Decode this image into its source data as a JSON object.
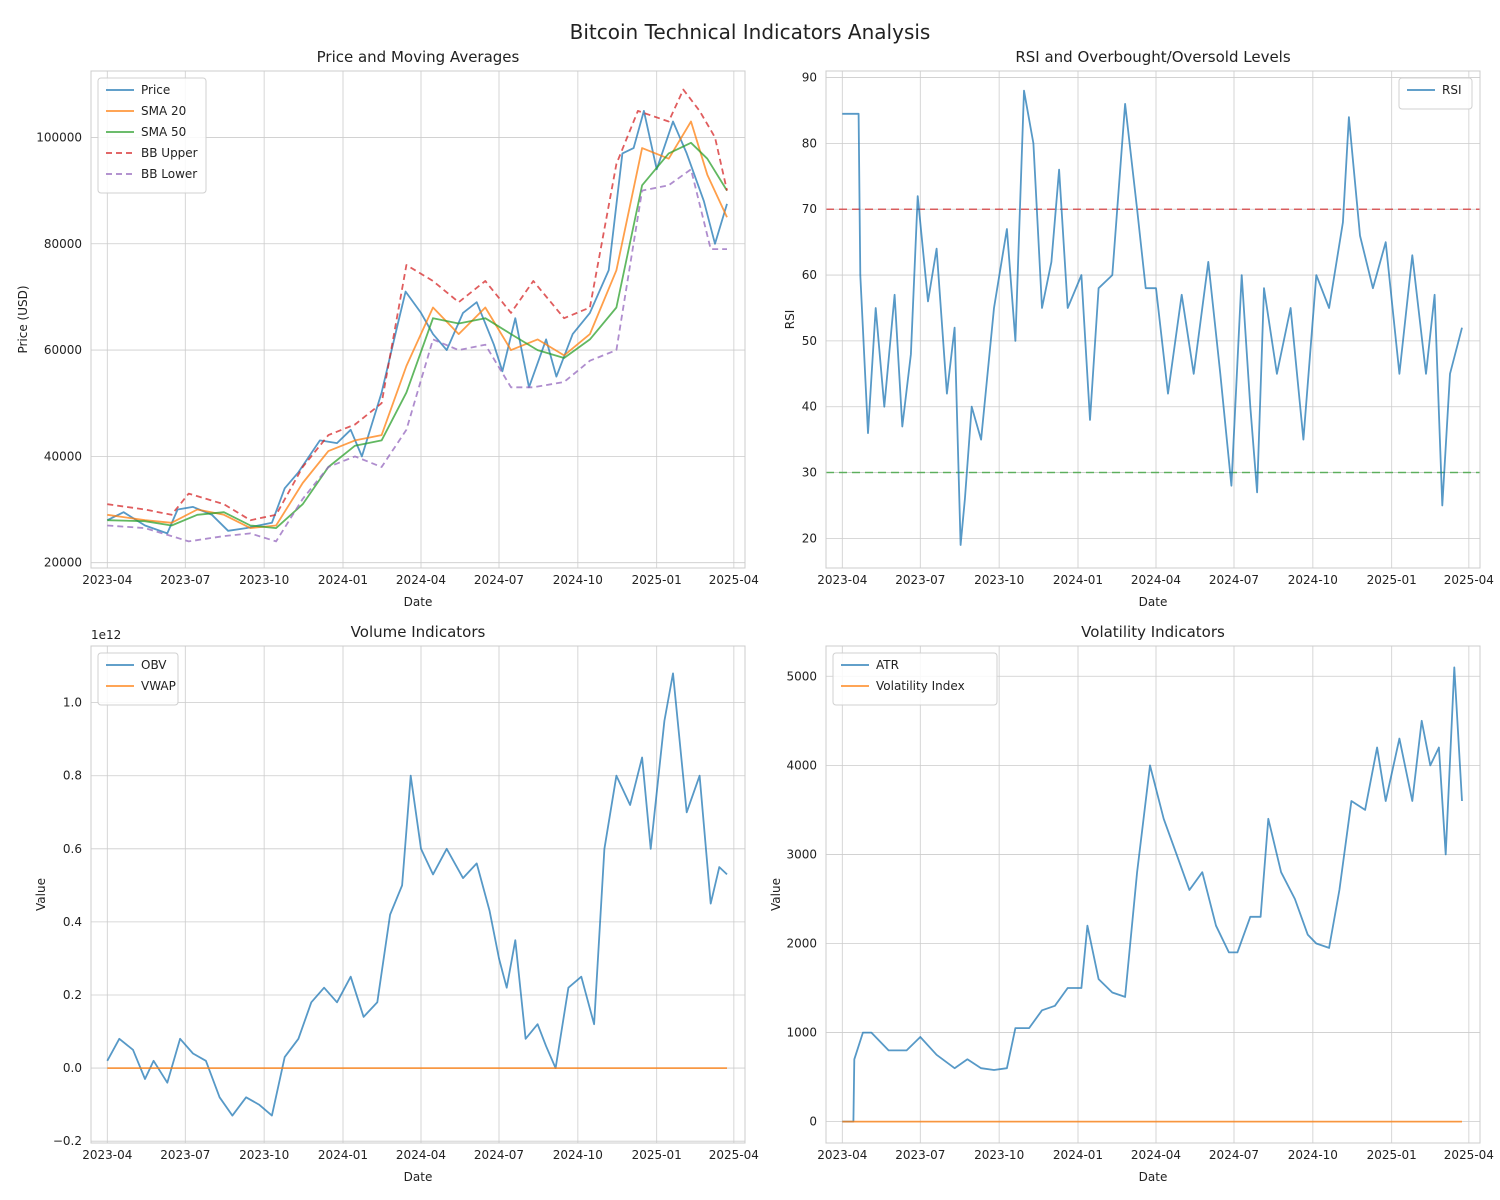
{
  "title": "Bitcoin Technical Indicators Analysis",
  "colors": {
    "blue": "#1f77b4",
    "orange": "#ff7f0e",
    "green": "#2ca02c",
    "red": "#d62728",
    "purple": "#9467bd",
    "grid": "#cccccc",
    "frame": "#cccccc"
  },
  "chart_data": [
    {
      "type": "line",
      "title": "Price and Moving Averages",
      "xlabel": "Date",
      "ylabel": "Price (USD)",
      "xlim": [
        "2023-03-13",
        "2025-04-14"
      ],
      "ylim": [
        19000,
        112500
      ],
      "xticks": [
        "2023-04",
        "2023-07",
        "2023-10",
        "2024-01",
        "2024-04",
        "2024-07",
        "2024-10",
        "2025-01",
        "2025-04"
      ],
      "yticks": [
        20000,
        40000,
        60000,
        80000,
        100000
      ],
      "legend": "top-left",
      "series": [
        {
          "name": "Price",
          "color": "#1f77b4",
          "dash": "",
          "x": [
            "2023-04-01",
            "2023-04-20",
            "2023-05-15",
            "2023-06-10",
            "2023-06-22",
            "2023-07-10",
            "2023-08-01",
            "2023-08-20",
            "2023-09-10",
            "2023-10-10",
            "2023-10-25",
            "2023-11-10",
            "2023-12-05",
            "2023-12-25",
            "2024-01-10",
            "2024-01-23",
            "2024-02-15",
            "2024-03-05",
            "2024-03-14",
            "2024-04-01",
            "2024-04-15",
            "2024-05-01",
            "2024-05-20",
            "2024-06-05",
            "2024-06-25",
            "2024-07-05",
            "2024-07-20",
            "2024-08-05",
            "2024-08-25",
            "2024-09-06",
            "2024-09-25",
            "2024-10-15",
            "2024-11-06",
            "2024-11-22",
            "2024-12-05",
            "2024-12-17",
            "2025-01-01",
            "2025-01-20",
            "2025-02-05",
            "2025-02-25",
            "2025-03-10",
            "2025-03-24"
          ],
          "y": [
            28000,
            29500,
            27000,
            25500,
            30000,
            30500,
            29000,
            26000,
            26500,
            27500,
            34000,
            37000,
            43000,
            42500,
            45000,
            40000,
            52000,
            65000,
            71000,
            67000,
            63000,
            60000,
            67000,
            69000,
            61000,
            56000,
            66000,
            53000,
            62000,
            55000,
            63000,
            67000,
            75000,
            97000,
            98000,
            105000,
            94000,
            103000,
            97000,
            88000,
            80000,
            87500
          ]
        },
        {
          "name": "SMA 20",
          "color": "#ff7f0e",
          "dash": "",
          "x": [
            "2023-04-01",
            "2023-05-15",
            "2023-06-15",
            "2023-07-15",
            "2023-08-15",
            "2023-09-15",
            "2023-10-15",
            "2023-11-15",
            "2023-12-15",
            "2024-01-15",
            "2024-02-15",
            "2024-03-15",
            "2024-04-15",
            "2024-05-15",
            "2024-06-15",
            "2024-07-15",
            "2024-08-15",
            "2024-09-15",
            "2024-10-15",
            "2024-11-15",
            "2024-12-15",
            "2025-01-15",
            "2025-02-10",
            "2025-03-01",
            "2025-03-24"
          ],
          "y": [
            29000,
            28000,
            27500,
            30000,
            29000,
            26500,
            27000,
            35000,
            41000,
            43000,
            44000,
            57000,
            68000,
            63000,
            68000,
            60000,
            62000,
            59000,
            63000,
            75000,
            98000,
            96000,
            103000,
            93000,
            85000
          ]
        },
        {
          "name": "SMA 50",
          "color": "#2ca02c",
          "dash": "",
          "x": [
            "2023-04-01",
            "2023-05-15",
            "2023-06-15",
            "2023-07-15",
            "2023-08-15",
            "2023-09-15",
            "2023-10-15",
            "2023-11-15",
            "2023-12-15",
            "2024-01-15",
            "2024-02-15",
            "2024-03-15",
            "2024-04-15",
            "2024-05-15",
            "2024-06-15",
            "2024-07-15",
            "2024-08-15",
            "2024-09-15",
            "2024-10-15",
            "2024-11-15",
            "2024-12-15",
            "2025-01-15",
            "2025-02-10",
            "2025-03-01",
            "2025-03-24"
          ],
          "y": [
            28000,
            27800,
            27000,
            29000,
            29500,
            27000,
            26500,
            31000,
            38000,
            42000,
            43000,
            52000,
            66000,
            65000,
            66000,
            63000,
            60000,
            58500,
            62000,
            68000,
            91000,
            97000,
            99000,
            96000,
            90000
          ]
        },
        {
          "name": "BB Upper",
          "color": "#d62728",
          "dash": "6,4",
          "x": [
            "2023-04-01",
            "2023-05-15",
            "2023-06-15",
            "2023-07-05",
            "2023-08-15",
            "2023-09-15",
            "2023-10-15",
            "2023-11-15",
            "2023-12-15",
            "2024-01-15",
            "2024-02-15",
            "2024-03-15",
            "2024-04-15",
            "2024-05-15",
            "2024-06-15",
            "2024-07-15",
            "2024-08-10",
            "2024-09-15",
            "2024-10-15",
            "2024-11-15",
            "2024-12-10",
            "2025-01-15",
            "2025-02-01",
            "2025-02-20",
            "2025-03-10",
            "2025-03-24"
          ],
          "y": [
            31000,
            30000,
            29000,
            33000,
            31000,
            28000,
            29000,
            38000,
            44000,
            46000,
            50000,
            76000,
            73000,
            69000,
            73000,
            67000,
            73000,
            66000,
            68000,
            95000,
            105000,
            103000,
            109000,
            105000,
            100000,
            90000
          ]
        },
        {
          "name": "BB Lower",
          "color": "#9467bd",
          "dash": "6,4",
          "x": [
            "2023-04-01",
            "2023-05-15",
            "2023-06-15",
            "2023-07-05",
            "2023-08-15",
            "2023-09-15",
            "2023-10-15",
            "2023-11-15",
            "2023-12-15",
            "2024-01-15",
            "2024-02-15",
            "2024-03-15",
            "2024-04-15",
            "2024-05-15",
            "2024-06-15",
            "2024-07-15",
            "2024-08-10",
            "2024-09-15",
            "2024-10-15",
            "2024-11-15",
            "2024-12-15",
            "2025-01-15",
            "2025-02-10",
            "2025-03-05",
            "2025-03-24"
          ],
          "y": [
            27000,
            26500,
            25000,
            24000,
            25000,
            25500,
            24000,
            32000,
            38000,
            40000,
            38000,
            45000,
            62000,
            60000,
            61000,
            53000,
            53000,
            54000,
            58000,
            60000,
            90000,
            91000,
            94000,
            79000,
            79000
          ]
        }
      ]
    },
    {
      "type": "line",
      "title": "RSI and Overbought/Oversold Levels",
      "xlabel": "Date",
      "ylabel": "RSI",
      "xlim": [
        "2023-03-13",
        "2025-04-14"
      ],
      "ylim": [
        15.5,
        91
      ],
      "xticks": [
        "2023-04",
        "2023-07",
        "2023-10",
        "2024-01",
        "2024-04",
        "2024-07",
        "2024-10",
        "2025-01",
        "2025-04"
      ],
      "yticks": [
        20,
        30,
        40,
        50,
        60,
        70,
        80,
        90
      ],
      "legend": "top-right",
      "hlines": [
        {
          "y": 70,
          "color": "#d62728"
        },
        {
          "y": 30,
          "color": "#2ca02c"
        }
      ],
      "series": [
        {
          "name": "RSI",
          "color": "#1f77b4",
          "dash": "",
          "x": [
            "2023-04-01",
            "2023-04-20",
            "2023-04-22",
            "2023-05-01",
            "2023-05-10",
            "2023-05-20",
            "2023-06-01",
            "2023-06-10",
            "2023-06-20",
            "2023-06-28",
            "2023-07-10",
            "2023-07-20",
            "2023-08-01",
            "2023-08-10",
            "2023-08-17",
            "2023-08-22",
            "2023-08-30",
            "2023-09-10",
            "2023-09-25",
            "2023-10-10",
            "2023-10-20",
            "2023-10-30",
            "2023-11-10",
            "2023-11-20",
            "2023-12-01",
            "2023-12-10",
            "2023-12-20",
            "2024-01-05",
            "2024-01-15",
            "2024-01-25",
            "2024-02-10",
            "2024-02-25",
            "2024-03-10",
            "2024-03-20",
            "2024-04-01",
            "2024-04-15",
            "2024-05-01",
            "2024-05-15",
            "2024-06-01",
            "2024-06-15",
            "2024-06-28",
            "2024-07-10",
            "2024-07-20",
            "2024-07-28",
            "2024-08-05",
            "2024-08-20",
            "2024-09-05",
            "2024-09-20",
            "2024-10-05",
            "2024-10-20",
            "2024-11-05",
            "2024-11-12",
            "2024-11-25",
            "2024-12-10",
            "2024-12-25",
            "2025-01-10",
            "2025-01-25",
            "2025-02-10",
            "2025-02-20",
            "2025-03-01",
            "2025-03-10",
            "2025-03-24"
          ],
          "y": [
            84.5,
            84.5,
            60,
            36,
            55,
            40,
            57,
            37,
            48,
            72,
            56,
            64,
            42,
            52,
            19,
            26,
            40,
            35,
            55,
            67,
            50,
            88,
            80,
            55,
            62,
            76,
            55,
            60,
            38,
            58,
            60,
            86,
            70,
            58,
            58,
            42,
            57,
            45,
            62,
            45,
            28,
            60,
            40,
            27,
            58,
            45,
            55,
            35,
            60,
            55,
            68,
            84,
            66,
            58,
            65,
            45,
            63,
            45,
            57,
            25,
            45,
            52
          ]
        }
      ]
    },
    {
      "type": "line",
      "title": "Volume Indicators",
      "xlabel": "Date",
      "ylabel": "Value",
      "scale_label": "1e12",
      "xlim": [
        "2023-03-13",
        "2025-04-14"
      ],
      "ylim": [
        -0.205,
        1.155
      ],
      "xticks": [
        "2023-04",
        "2023-07",
        "2023-10",
        "2024-01",
        "2024-04",
        "2024-07",
        "2024-10",
        "2025-01",
        "2025-04"
      ],
      "yticks": [
        "−0.2",
        "0.0",
        "0.2",
        "0.4",
        "0.6",
        "0.8",
        "1.0"
      ],
      "ytick_values": [
        -0.2,
        0.0,
        0.2,
        0.4,
        0.6,
        0.8,
        1.0
      ],
      "legend": "top-left",
      "series": [
        {
          "name": "OBV",
          "color": "#1f77b4",
          "dash": "",
          "x": [
            "2023-04-01",
            "2023-04-15",
            "2023-05-01",
            "2023-05-15",
            "2023-05-25",
            "2023-06-10",
            "2023-06-25",
            "2023-07-10",
            "2023-07-25",
            "2023-08-10",
            "2023-08-25",
            "2023-09-10",
            "2023-09-25",
            "2023-10-10",
            "2023-10-25",
            "2023-11-10",
            "2023-11-25",
            "2023-12-10",
            "2023-12-25",
            "2024-01-10",
            "2024-01-25",
            "2024-02-10",
            "2024-02-25",
            "2024-03-10",
            "2024-03-20",
            "2024-04-01",
            "2024-04-15",
            "2024-05-01",
            "2024-05-20",
            "2024-06-05",
            "2024-06-20",
            "2024-07-01",
            "2024-07-10",
            "2024-07-20",
            "2024-08-01",
            "2024-08-15",
            "2024-08-25",
            "2024-09-05",
            "2024-09-20",
            "2024-10-05",
            "2024-10-20",
            "2024-11-01",
            "2024-11-15",
            "2024-12-01",
            "2024-12-15",
            "2024-12-25",
            "2025-01-10",
            "2025-01-20",
            "2025-02-05",
            "2025-02-20",
            "2025-03-05",
            "2025-03-15",
            "2025-03-24"
          ],
          "y": [
            0.02,
            0.08,
            0.05,
            -0.03,
            0.02,
            -0.04,
            0.08,
            0.04,
            0.02,
            -0.08,
            -0.13,
            -0.08,
            -0.1,
            -0.13,
            0.03,
            0.08,
            0.18,
            0.22,
            0.18,
            0.25,
            0.14,
            0.18,
            0.42,
            0.5,
            0.8,
            0.6,
            0.53,
            0.6,
            0.52,
            0.56,
            0.43,
            0.3,
            0.22,
            0.35,
            0.08,
            0.12,
            0.06,
            0.0,
            0.22,
            0.25,
            0.12,
            0.6,
            0.8,
            0.72,
            0.85,
            0.6,
            0.95,
            1.08,
            0.7,
            0.8,
            0.45,
            0.55,
            0.53
          ]
        },
        {
          "name": "VWAP",
          "color": "#ff7f0e",
          "dash": "",
          "x": [
            "2023-04-01",
            "2025-03-24"
          ],
          "y": [
            0.0,
            0.0
          ]
        }
      ]
    },
    {
      "type": "line",
      "title": "Volatility Indicators",
      "xlabel": "Date",
      "ylabel": "Value",
      "xlim": [
        "2023-03-13",
        "2025-04-14"
      ],
      "ylim": [
        -240,
        5340
      ],
      "xticks": [
        "2023-04",
        "2023-07",
        "2023-10",
        "2024-01",
        "2024-04",
        "2024-07",
        "2024-10",
        "2025-01",
        "2025-04"
      ],
      "yticks": [
        0,
        1000,
        2000,
        3000,
        4000,
        5000
      ],
      "legend": "top-left",
      "series": [
        {
          "name": "ATR",
          "color": "#1f77b4",
          "dash": "",
          "x": [
            "2023-04-01",
            "2023-04-14",
            "2023-04-15",
            "2023-04-25",
            "2023-05-05",
            "2023-05-25",
            "2023-06-15",
            "2023-07-01",
            "2023-07-20",
            "2023-08-10",
            "2023-08-25",
            "2023-09-10",
            "2023-09-25",
            "2023-10-10",
            "2023-10-20",
            "2023-11-05",
            "2023-11-20",
            "2023-12-05",
            "2023-12-20",
            "2024-01-05",
            "2024-01-12",
            "2024-01-25",
            "2024-02-10",
            "2024-02-25",
            "2024-03-10",
            "2024-03-25",
            "2024-04-10",
            "2024-04-25",
            "2024-05-10",
            "2024-05-25",
            "2024-06-10",
            "2024-06-25",
            "2024-07-05",
            "2024-07-20",
            "2024-08-01",
            "2024-08-10",
            "2024-08-25",
            "2024-09-10",
            "2024-09-25",
            "2024-10-05",
            "2024-10-20",
            "2024-11-01",
            "2024-11-15",
            "2024-12-01",
            "2024-12-15",
            "2024-12-25",
            "2025-01-10",
            "2025-01-25",
            "2025-02-05",
            "2025-02-15",
            "2025-02-25",
            "2025-03-05",
            "2025-03-15",
            "2025-03-24"
          ],
          "y": [
            0,
            0,
            700,
            1000,
            1000,
            800,
            800,
            950,
            750,
            600,
            700,
            600,
            580,
            600,
            1050,
            1050,
            1250,
            1300,
            1500,
            1500,
            2200,
            1600,
            1450,
            1400,
            2800,
            4000,
            3400,
            3000,
            2600,
            2800,
            2200,
            1900,
            1900,
            2300,
            2300,
            3400,
            2800,
            2500,
            2100,
            2000,
            1950,
            2600,
            3600,
            3500,
            4200,
            3600,
            4300,
            3600,
            4500,
            4000,
            4200,
            3000,
            5100,
            3600
          ]
        },
        {
          "name": "Volatility Index",
          "color": "#ff7f0e",
          "dash": "",
          "x": [
            "2023-04-01",
            "2025-03-24"
          ],
          "y": [
            0,
            0
          ]
        }
      ]
    }
  ]
}
